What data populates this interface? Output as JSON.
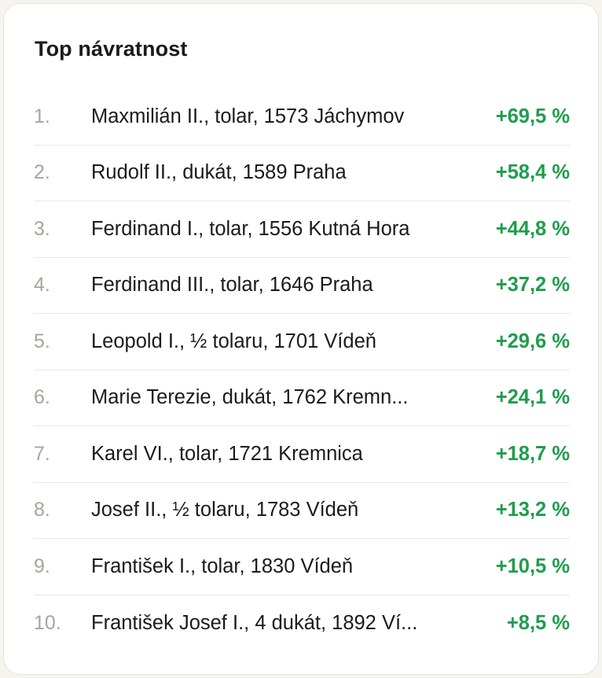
{
  "card": {
    "title": "Top návratnost"
  },
  "colors": {
    "positive": "#1f9d4c",
    "rank": "#a8a49c",
    "text": "#1c1b19"
  },
  "items": [
    {
      "rank": "1.",
      "name": "Maxmilián II., tolar, 1573 Jáchymov",
      "return": "+69,5 %"
    },
    {
      "rank": "2.",
      "name": "Rudolf II., dukát, 1589 Praha",
      "return": "+58,4 %"
    },
    {
      "rank": "3.",
      "name": "Ferdinand I., tolar, 1556 Kutná Hora",
      "return": "+44,8 %"
    },
    {
      "rank": "4.",
      "name": "Ferdinand III., tolar, 1646 Praha",
      "return": "+37,2 %"
    },
    {
      "rank": "5.",
      "name": "Leopold I., ½ tolaru, 1701 Vídeň",
      "return": "+29,6 %"
    },
    {
      "rank": "6.",
      "name": "Marie Terezie, dukát, 1762 Kremn...",
      "return": "+24,1 %"
    },
    {
      "rank": "7.",
      "name": "Karel VI., tolar, 1721 Kremnica",
      "return": "+18,7 %"
    },
    {
      "rank": "8.",
      "name": "Josef II., ½ tolaru, 1783 Vídeň",
      "return": "+13,2 %"
    },
    {
      "rank": "9.",
      "name": "František I., tolar, 1830 Vídeň",
      "return": "+10,5 %"
    },
    {
      "rank": "10.",
      "name": "František Josef I., 4 dukát, 1892 Ví...",
      "return": "+8,5 %"
    }
  ]
}
